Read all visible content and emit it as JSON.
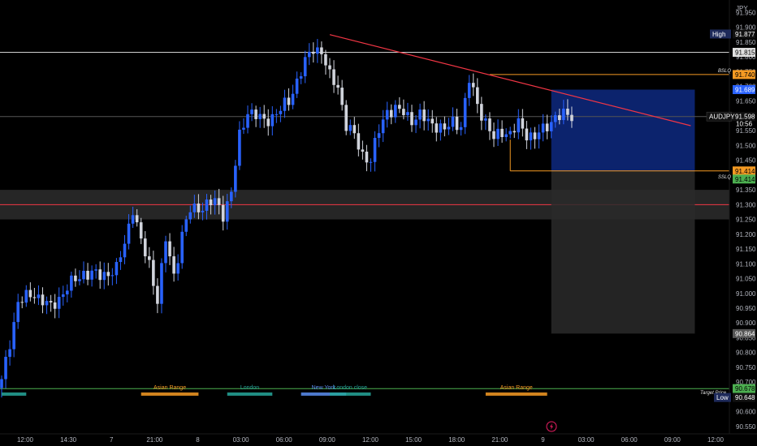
{
  "chart_data": {
    "type": "candlestick",
    "symbol": "AUDJPY",
    "currency": "JPY",
    "countdown": "10:56",
    "last_price": 91.598,
    "y_range": [
      90.525,
      91.992
    ],
    "price_ticks": [
      "91.950",
      "91.900",
      "91.850",
      "91.800",
      "91.750",
      "91.700",
      "91.650",
      "91.600",
      "91.550",
      "91.500",
      "91.450",
      "91.400",
      "91.350",
      "91.300",
      "91.250",
      "91.200",
      "91.150",
      "91.100",
      "91.050",
      "91.000",
      "90.950",
      "90.900",
      "90.850",
      "90.800",
      "90.750",
      "90.700",
      "90.650",
      "90.600",
      "90.550"
    ],
    "time_labels": [
      "12:00",
      "14:30",
      "7",
      "21:00",
      "8",
      "03:00",
      "06:00",
      "09:00",
      "12:00",
      "15:00",
      "18:00",
      "21:00",
      "9",
      "03:00",
      "06:00",
      "09:00",
      "12:00"
    ],
    "horizontal_levels": [
      {
        "label": "High",
        "value": "91.877",
        "price": 91.877,
        "color": "#1e2a5a"
      },
      {
        "label": "",
        "value": "91.815",
        "price": 91.815,
        "color": "#e0e0e0"
      },
      {
        "label": "BSLQ",
        "value": "91.740",
        "price": 91.74,
        "color": "#f59a23"
      },
      {
        "label": "",
        "value": "91.689",
        "price": 91.689,
        "color": "#2962ff"
      },
      {
        "label": "SSLQ",
        "value": "91.414",
        "price": 91.414,
        "color": "#f59a23"
      },
      {
        "label": "",
        "value": "91.414",
        "price": 91.414,
        "color": "#4caf50"
      },
      {
        "label": "",
        "value": "90.864",
        "price": 90.864,
        "color": "#555555"
      },
      {
        "label": "Target Price",
        "value": "90.678",
        "price": 90.678,
        "color": "#4caf50"
      },
      {
        "label": "Low",
        "value": "90.648",
        "price": 90.648,
        "color": "#1e2a5a"
      }
    ],
    "candle_count": 140,
    "candle_anchors": [
      [
        0,
        90.7
      ],
      [
        4,
        90.97
      ],
      [
        8,
        91.0
      ],
      [
        12,
        90.95
      ],
      [
        16,
        91.02
      ],
      [
        20,
        91.07
      ],
      [
        24,
        91.06
      ],
      [
        28,
        91.08
      ],
      [
        30,
        91.17
      ],
      [
        32,
        91.29
      ],
      [
        34,
        91.17
      ],
      [
        36,
        91.1
      ],
      [
        38,
        90.98
      ],
      [
        40,
        91.18
      ],
      [
        42,
        91.06
      ],
      [
        44,
        91.2
      ],
      [
        46,
        91.28
      ],
      [
        48,
        91.29
      ],
      [
        52,
        91.31
      ],
      [
        54,
        91.27
      ],
      [
        56,
        91.34
      ],
      [
        58,
        91.53
      ],
      [
        60,
        91.62
      ],
      [
        64,
        91.58
      ],
      [
        68,
        91.62
      ],
      [
        70,
        91.65
      ],
      [
        72,
        91.72
      ],
      [
        74,
        91.78
      ],
      [
        76,
        91.83
      ],
      [
        78,
        91.82
      ],
      [
        80,
        91.73
      ],
      [
        82,
        91.7
      ],
      [
        84,
        91.57
      ],
      [
        86,
        91.53
      ],
      [
        88,
        91.47
      ],
      [
        90,
        91.45
      ],
      [
        92,
        91.55
      ],
      [
        94,
        91.62
      ],
      [
        96,
        91.62
      ],
      [
        98,
        91.61
      ],
      [
        100,
        91.59
      ],
      [
        102,
        91.6
      ],
      [
        104,
        91.58
      ],
      [
        106,
        91.57
      ],
      [
        108,
        91.55
      ],
      [
        110,
        91.58
      ],
      [
        112,
        91.57
      ],
      [
        114,
        91.72
      ],
      [
        116,
        91.64
      ],
      [
        118,
        91.58
      ],
      [
        120,
        91.52
      ],
      [
        122,
        91.55
      ],
      [
        124,
        91.54
      ],
      [
        126,
        91.57
      ],
      [
        128,
        91.54
      ],
      [
        130,
        91.53
      ],
      [
        132,
        91.55
      ],
      [
        135,
        91.6
      ],
      [
        139,
        91.6
      ]
    ],
    "trendlines": [
      {
        "from": [
          80,
          91.875
        ],
        "to": [
          168,
          91.567
        ],
        "color": "#f23645"
      }
    ],
    "box_zone": {
      "top": 91.35,
      "bottom": 91.25,
      "mid": 91.3,
      "mid_color": "#f23645"
    },
    "position_tool": {
      "entry": 91.414,
      "target": 91.689,
      "stop": 90.864,
      "start_index": 134,
      "end_index": 169
    },
    "sessions": [
      {
        "name": "",
        "start": 0,
        "end": 6,
        "color": "#26a69a"
      },
      {
        "name": "Asian Range",
        "start": 34,
        "end": 48,
        "color": "#f59a23"
      },
      {
        "name": "London",
        "start": 55,
        "end": 66,
        "color": "#26a69a"
      },
      {
        "name": "New York",
        "start": 73,
        "end": 84,
        "color": "#5b8def"
      },
      {
        "name": "London close",
        "start": 80,
        "end": 90,
        "color": "#26a69a"
      },
      {
        "name": "Asian Range",
        "start": 118,
        "end": 133,
        "color": "#f59a23"
      }
    ]
  },
  "icons": {
    "lightning": "lightning-icon"
  }
}
